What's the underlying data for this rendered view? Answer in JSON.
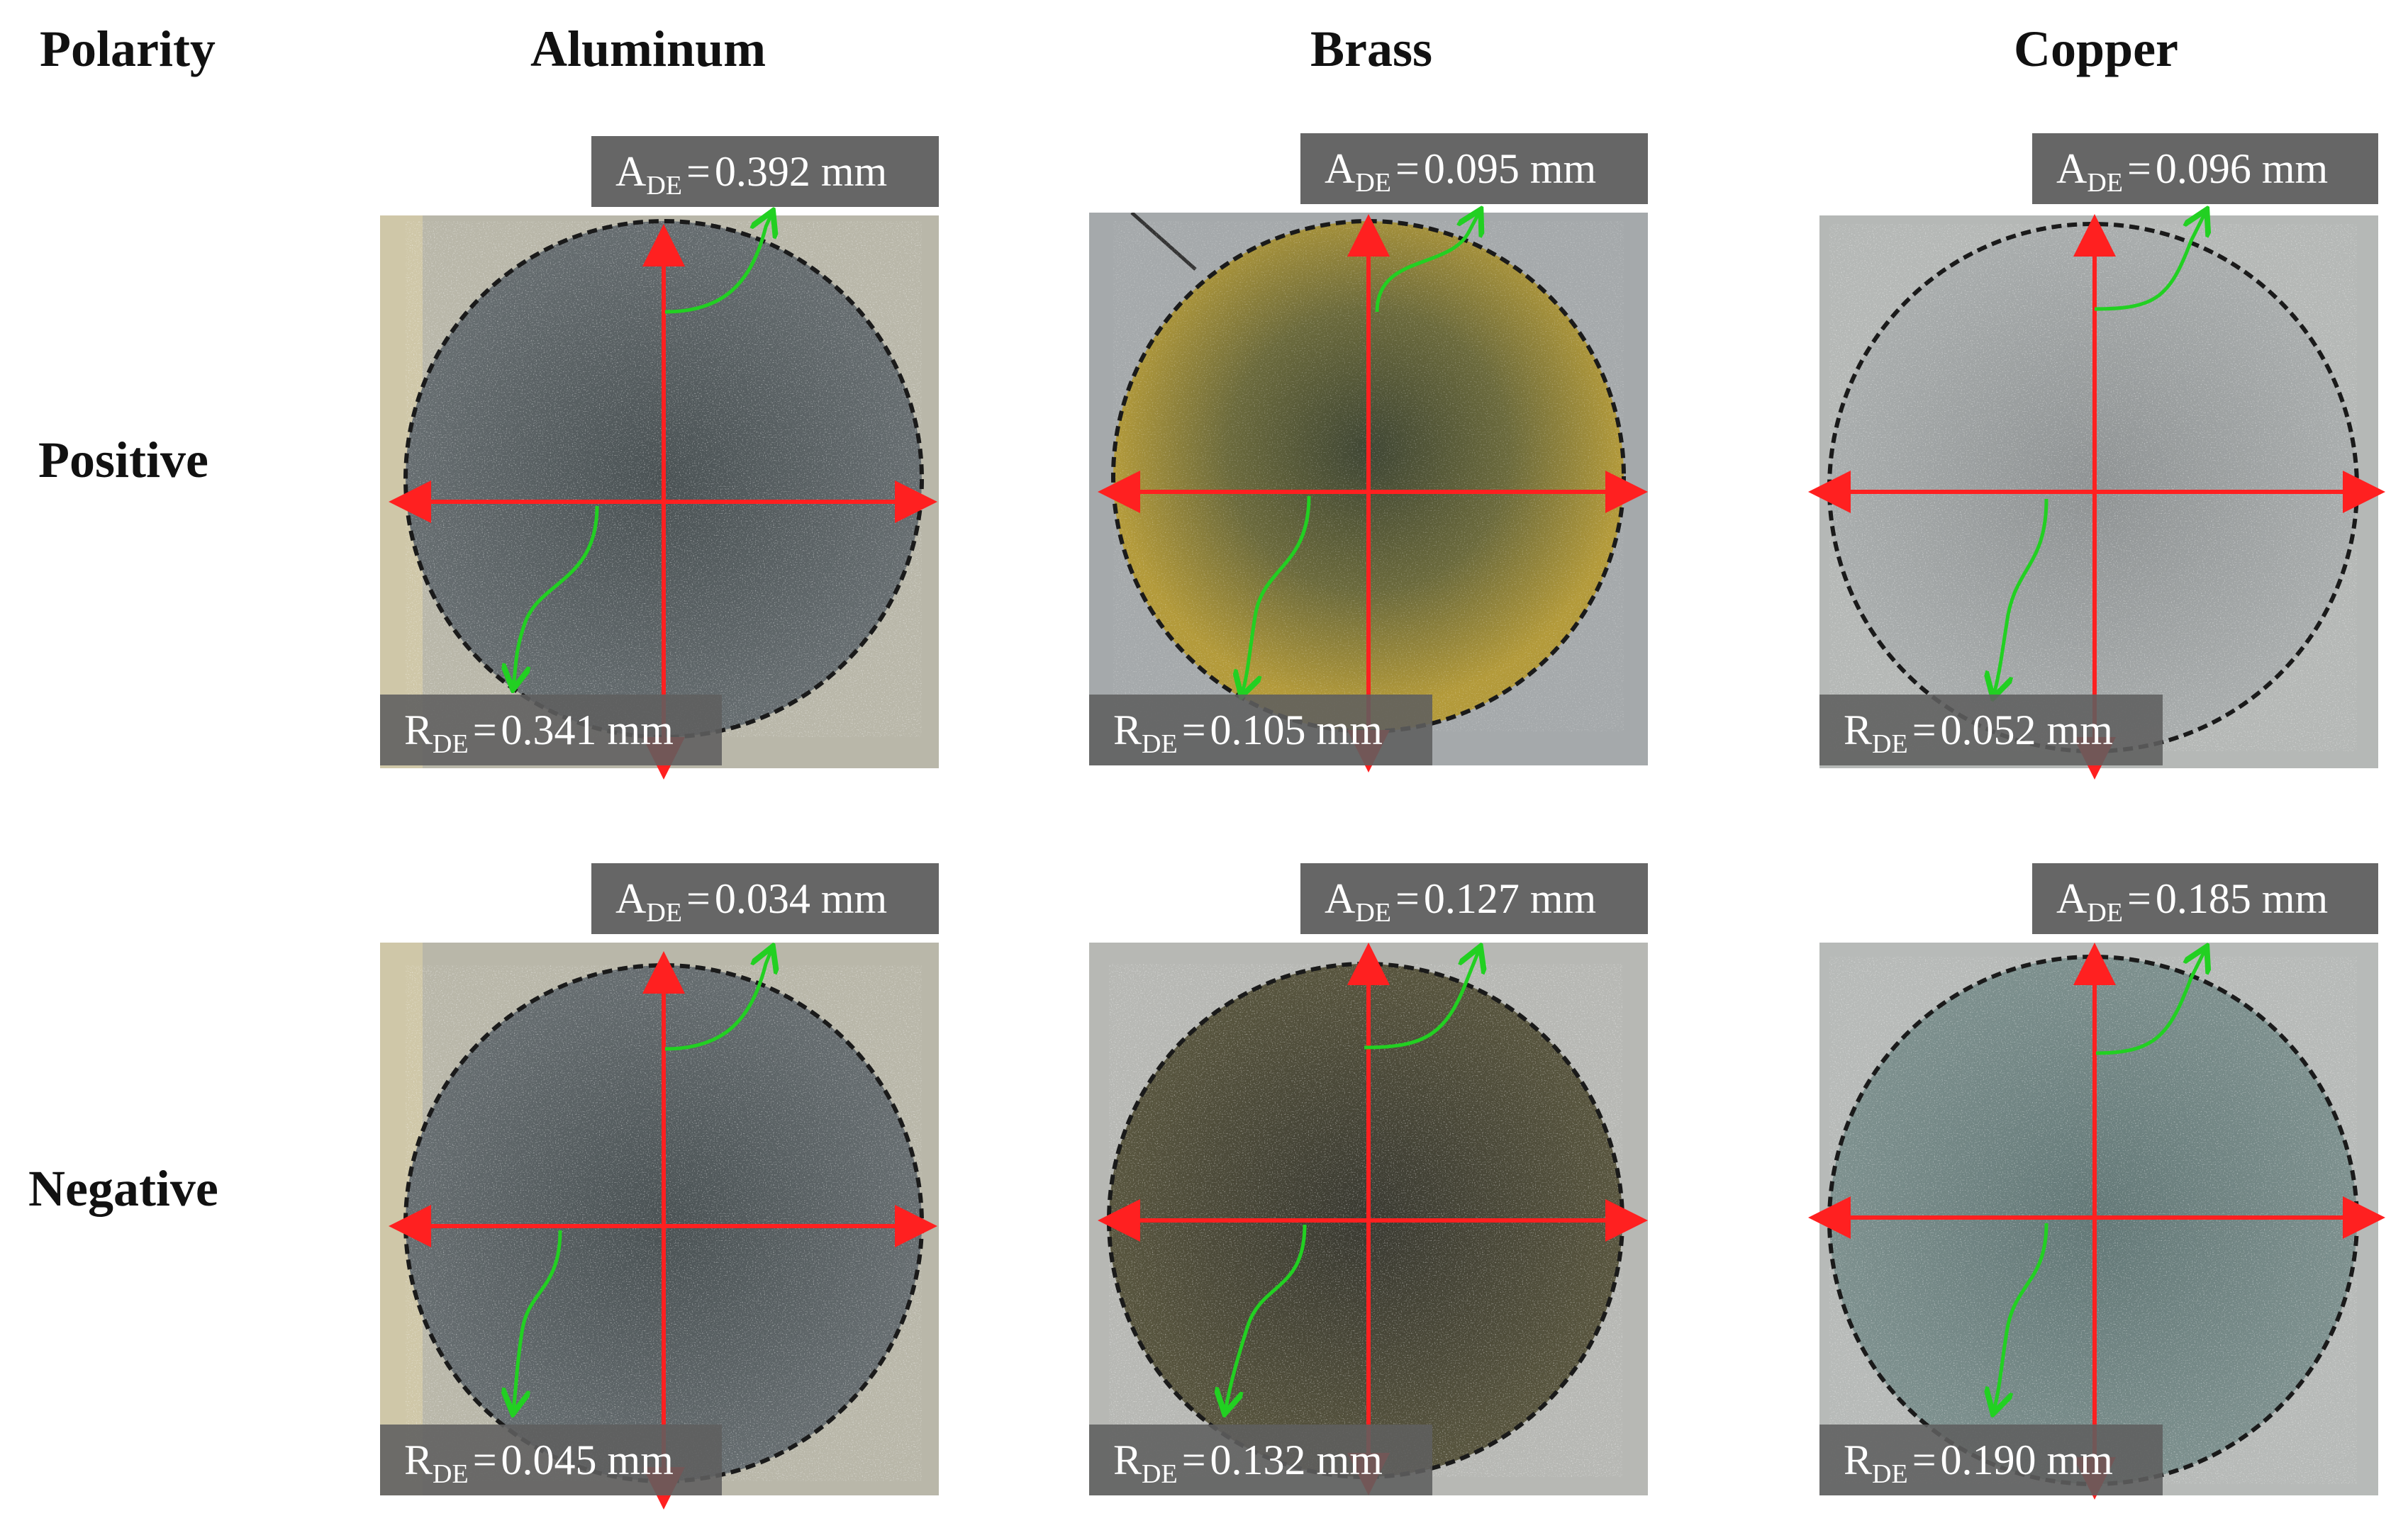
{
  "headers": {
    "polarity": "Polarity",
    "aluminum": "Aluminum",
    "brass": "Brass",
    "copper": "Copper"
  },
  "rows": {
    "positive": "Positive",
    "negative": "Negative"
  },
  "labels": {
    "A": "A",
    "R": "R",
    "sub": "DE",
    "eq": "="
  },
  "values": {
    "positive": {
      "aluminum": {
        "a": "0.392 mm",
        "r": "0.341 mm"
      },
      "brass": {
        "a": "0.095 mm",
        "r": "0.105 mm"
      },
      "copper": {
        "a": "0.096 mm",
        "r": "0.052 mm"
      }
    },
    "negative": {
      "aluminum": {
        "a": "0.034 mm",
        "r": "0.045 mm"
      },
      "brass": {
        "a": "0.127 mm",
        "r": "0.132 mm"
      },
      "copper": {
        "a": "0.185 mm",
        "r": "0.190 mm"
      }
    }
  },
  "colors": {
    "axis_arrow": "#ff2020",
    "leader_arrow": "#22d022",
    "outline": "#1a1a1a",
    "aluminum_surface": "#5a6062",
    "brass_pos_surface": "#a08a34",
    "brass_neg_surface": "#4a4838",
    "copper_surface": "#9a9e9e",
    "copper_neg_surface": "#6a807e"
  }
}
